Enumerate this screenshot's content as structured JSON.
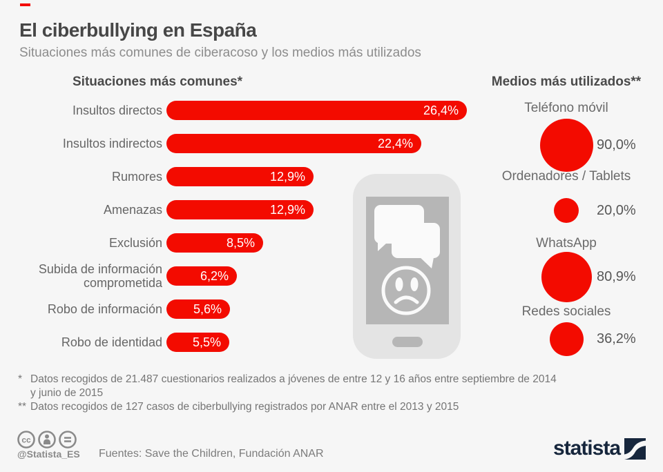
{
  "page": {
    "title": "El ciberbullying en España",
    "subtitle": "Situaciones más comunes de ciberacoso y los medios más utilizados"
  },
  "colors": {
    "accent_red": "#f30b00",
    "background": "#f6f6f6",
    "logo_navy": "#16263c",
    "phone_body_gray": "#e4e4e4",
    "phone_screen_gray": "#b6b6b6"
  },
  "chart_data": [
    {
      "type": "bar",
      "title": "Situaciones más comunes*",
      "orientation": "horizontal",
      "categories": [
        "Insultos directos",
        "Insultos indirectos",
        "Rumores",
        "Amenazas",
        "Exclusión",
        "Subida de información comprometida",
        "Robo de información",
        "Robo de identidad"
      ],
      "values": [
        26.4,
        22.4,
        12.9,
        12.9,
        8.5,
        6.2,
        5.6,
        5.5
      ],
      "values_display": [
        "26,4%",
        "22,4%",
        "12,9%",
        "12,9%",
        "8,5%",
        "6,2%",
        "5,6%",
        "5,5%"
      ],
      "unit": "%",
      "xlim": [
        0,
        30
      ],
      "bar_color": "#f30b00",
      "value_labels": "inside-end, white",
      "grid": false
    },
    {
      "type": "bubble",
      "title": "Medios más utilizados**",
      "categories": [
        "Teléfono móvil",
        "Ordenadores / Tablets",
        "WhatsApp",
        "Redes sociales"
      ],
      "values": [
        90.0,
        20.0,
        80.9,
        36.2
      ],
      "values_display": [
        "90,0%",
        "20,0%",
        "80,9%",
        "36,2%"
      ],
      "unit": "%",
      "bubble_color": "#f30b00",
      "sizing": "area-proportional, labels above, values right"
    }
  ],
  "footnotes": [
    {
      "marker": "*",
      "lines": [
        "Datos recogidos de 21.487 cuestionarios realizados a jóvenes de entre 12 y 16 años entre septiembre de 2014",
        "y junio de 2015"
      ]
    },
    {
      "marker": "**",
      "lines": [
        "Datos recogidos de 127 casos de ciberbullying registrados por ANAR entre el 2013 y 2015"
      ]
    }
  ],
  "footer": {
    "cc_icons": [
      "cc-license-icon",
      "attribution-icon",
      "equal-icon"
    ],
    "handle": "@Statista_ES",
    "sources": "Fuentes: Save the Children, Fundación ANAR",
    "logo_text": "statista"
  }
}
